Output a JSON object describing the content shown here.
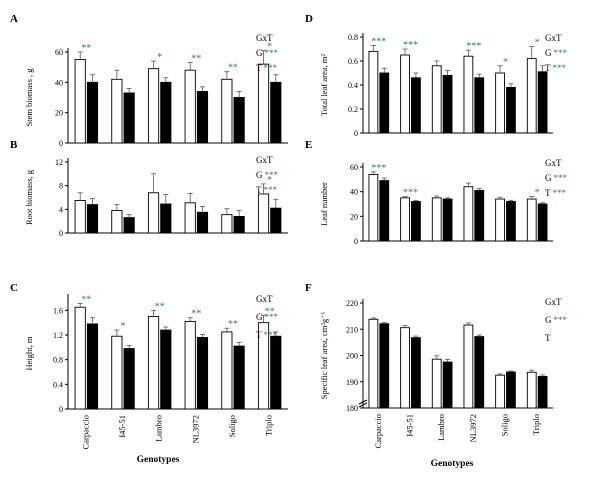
{
  "figure": {
    "genotypes": [
      "Carpaccio",
      "I45-51",
      "Lambro",
      "NL3972",
      "Soligo",
      "Triplo"
    ],
    "x_axis_title": "Genotypes",
    "bar_colors": {
      "control": "#ffffff",
      "treated": "#000000"
    },
    "significance_color": "#2f7f70"
  },
  "chart_data": [
    {
      "panel": "A",
      "type": "bar",
      "ylabel": "Stem biomass , g",
      "categories": [
        "Carpaccio",
        "I45-51",
        "Lambro",
        "NL3972",
        "Soligo",
        "Triplo"
      ],
      "ylim": [
        0,
        60
      ],
      "yticks": [
        "0",
        "20",
        "40",
        "60"
      ],
      "series": [
        {
          "values": [
            55,
            42,
            49,
            48,
            42,
            52
          ],
          "errors": [
            5,
            6,
            5,
            5,
            5,
            9
          ]
        },
        {
          "values": [
            40,
            33,
            40,
            34,
            30,
            40
          ],
          "errors": [
            5,
            3,
            3,
            3,
            4,
            5
          ]
        }
      ],
      "significance": [
        "**",
        "",
        "*",
        "**",
        "**",
        "*"
      ],
      "legend": [
        {
          "label": "GxT",
          "stars": ""
        },
        {
          "label": "G",
          "stars": "***"
        },
        {
          "label": "T",
          "stars": "***"
        }
      ]
    },
    {
      "panel": "B",
      "type": "bar",
      "ylabel": "Root biomass, g",
      "categories": [
        "Carpaccio",
        "I45-51",
        "Lambro",
        "NL3972",
        "Soligo",
        "Triplo"
      ],
      "ylim": [
        0,
        12
      ],
      "yticks": [
        "0",
        "4",
        "8",
        "12"
      ],
      "series": [
        {
          "values": [
            5.5,
            3.8,
            6.8,
            5.1,
            3.1,
            6.6
          ],
          "errors": [
            1.3,
            1.0,
            3.2,
            1.6,
            1.0,
            1.7
          ]
        },
        {
          "values": [
            4.8,
            2.6,
            4.9,
            3.5,
            2.8,
            4.2
          ],
          "errors": [
            1.0,
            0.5,
            1.6,
            1.0,
            1.0,
            1.5
          ]
        }
      ],
      "significance": [
        "",
        "",
        "",
        "",
        "",
        "*"
      ],
      "legend": [
        {
          "label": "GxT",
          "stars": ""
        },
        {
          "label": "G",
          "stars": "***"
        },
        {
          "label": "T",
          "stars": "***"
        }
      ]
    },
    {
      "panel": "C",
      "type": "bar",
      "ylabel": "Height,  m",
      "categories": [
        "Carpaccio",
        "I45-51",
        "Lambro",
        "NL3972",
        "Soligo",
        "Triplo"
      ],
      "ylim": [
        0,
        1.8
      ],
      "yticks": [
        "0",
        "0.4",
        "0.8",
        "1.2",
        "1.6",
        "2.0"
      ],
      "ytick_values": [
        0,
        0.4,
        0.8,
        1.2,
        1.6,
        2.0
      ],
      "series": [
        {
          "values": [
            1.65,
            1.18,
            1.5,
            1.42,
            1.25,
            1.4
          ],
          "errors": [
            0.06,
            0.1,
            0.1,
            0.06,
            0.06,
            0.12
          ]
        },
        {
          "values": [
            1.38,
            0.98,
            1.28,
            1.16,
            1.02,
            1.18
          ],
          "errors": [
            0.1,
            0.05,
            0.05,
            0.05,
            0.06,
            0.07
          ]
        }
      ],
      "significance": [
        "**",
        "*",
        "**",
        "**",
        "**",
        "**"
      ],
      "legend": [
        {
          "label": "GxT",
          "stars": ""
        },
        {
          "label": "G",
          "stars": "***"
        },
        {
          "label": "T",
          "stars": "***"
        }
      ]
    },
    {
      "panel": "D",
      "type": "bar",
      "ylabel": "Total leaf area,  m²",
      "categories": [
        "Carpaccio",
        "I45-51",
        "Lambro",
        "NL3972",
        "Soligo",
        "Triplo"
      ],
      "ylim": [
        0,
        0.8
      ],
      "yticks": [
        "0",
        "0.2",
        "0.4",
        "0.6",
        "0.8"
      ],
      "series": [
        {
          "values": [
            0.68,
            0.65,
            0.56,
            0.64,
            0.5,
            0.62
          ],
          "errors": [
            0.05,
            0.05,
            0.04,
            0.05,
            0.06,
            0.1
          ]
        },
        {
          "values": [
            0.5,
            0.46,
            0.48,
            0.46,
            0.38,
            0.51
          ],
          "errors": [
            0.04,
            0.04,
            0.04,
            0.03,
            0.03,
            0.05
          ]
        }
      ],
      "significance": [
        "***",
        "***",
        "",
        "***",
        "*",
        "*"
      ],
      "legend": [
        {
          "label": "GxT",
          "stars": ""
        },
        {
          "label": "G",
          "stars": "***"
        },
        {
          "label": "T",
          "stars": "***"
        }
      ]
    },
    {
      "panel": "E",
      "type": "bar",
      "ylabel": "Leaf number",
      "categories": [
        "Carpaccio",
        "I45-51",
        "Lambro",
        "NL3972",
        "Soligo",
        "Triplo"
      ],
      "ylim": [
        0,
        60
      ],
      "yticks": [
        "0",
        "20",
        "40",
        "60"
      ],
      "series": [
        {
          "values": [
            54,
            35,
            35,
            44,
            34,
            34
          ],
          "errors": [
            2,
            1,
            1.5,
            3,
            1.5,
            2
          ]
        },
        {
          "values": [
            49,
            32,
            34,
            41,
            32,
            30
          ],
          "errors": [
            2,
            1,
            1,
            1.5,
            1,
            1
          ]
        }
      ],
      "significance": [
        "***",
        "***",
        "",
        "",
        "",
        "*"
      ],
      "legend": [
        {
          "label": "GxT",
          "stars": ""
        },
        {
          "label": "G",
          "stars": "***"
        },
        {
          "label": "T",
          "stars": "***"
        }
      ]
    },
    {
      "panel": "F",
      "type": "bar",
      "ylabel": "Specific leaf area, cm²g⁻¹",
      "categories": [
        "Carpaccio",
        "I45-51",
        "Lambro",
        "NL3972",
        "Soligo",
        "Triplo"
      ],
      "ylim": [
        180,
        220
      ],
      "yticks": [
        "180",
        "190",
        "200",
        "210",
        "220"
      ],
      "axis_break": true,
      "series": [
        {
          "values": [
            213.8,
            210.6,
            198.6,
            211.6,
            192.5,
            193.6
          ],
          "errors": [
            0.5,
            0.8,
            1.3,
            0.8,
            0.5,
            0.8
          ]
        },
        {
          "values": [
            212.1,
            206.8,
            197.5,
            207.2,
            193.7,
            192.0
          ],
          "errors": [
            0.4,
            0.6,
            1.0,
            0.6,
            0.4,
            0.6
          ]
        }
      ],
      "significance": [
        "",
        "",
        "",
        "",
        "",
        ""
      ],
      "legend": [
        {
          "label": "GxT",
          "stars": ""
        },
        {
          "label": "G",
          "stars": "***"
        },
        {
          "label": "T",
          "stars": ""
        }
      ]
    }
  ]
}
